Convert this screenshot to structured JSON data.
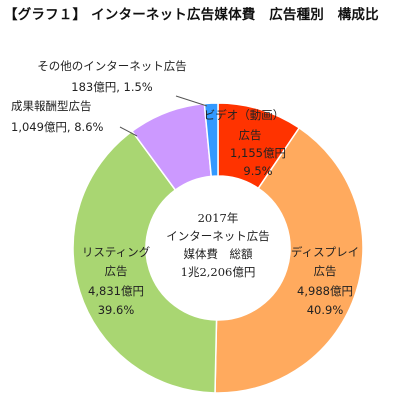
{
  "chart_data": {
    "type": "pie",
    "title": "【グラフ１】 インターネット広告媒体費　広告種別　構成比",
    "center_label": [
      "2017年",
      "インターネット広告",
      "媒体費　総額",
      "1兆2,206億円"
    ],
    "slices": [
      {
        "name": "ビデオ（動画）広告",
        "value": 1155,
        "value_label": "1,155億円",
        "percent": 9.5,
        "percent_label": "9.5%",
        "color": "#ff3300"
      },
      {
        "name": "ディスプレイ広告",
        "value": 4988,
        "value_label": "4,988億円",
        "percent": 40.9,
        "percent_label": "40.9%",
        "color": "#ffaa5e"
      },
      {
        "name": "リスティング広告",
        "value": 4831,
        "value_label": "4,831億円",
        "percent": 39.6,
        "percent_label": "39.6%",
        "color": "#a9d672"
      },
      {
        "name": "成果報酬型広告",
        "value": 1049,
        "value_label": "1,049億円",
        "percent": 8.6,
        "percent_label": "8.6%",
        "color": "#cc99ff"
      },
      {
        "name": "その他のインターネット広告",
        "value": 183,
        "value_label": "183億円",
        "percent": 1.5,
        "percent_label": "1.5%",
        "color": "#3399ff"
      }
    ]
  }
}
